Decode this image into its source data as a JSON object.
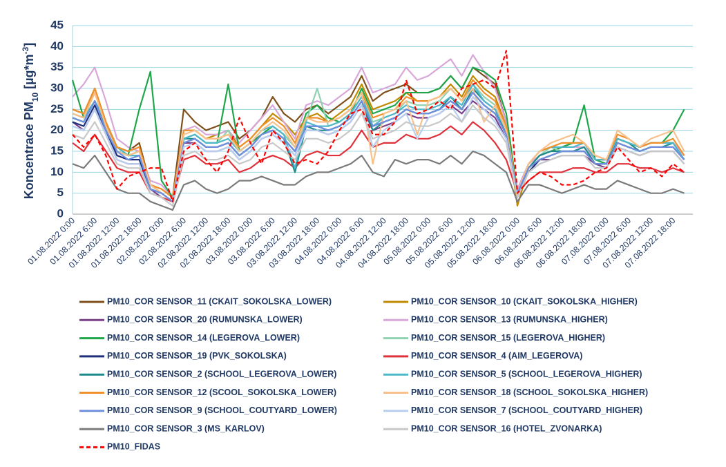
{
  "chart_data": {
    "type": "line",
    "y_label": [
      "Koncentrace PM",
      "10",
      " [µg*m",
      "-3",
      "]"
    ],
    "categories": [
      "01.08.2022 0:00",
      null,
      "01.08.2022 6:00",
      null,
      "01.08.2022 12:00",
      null,
      "01.08.2022 18:00",
      null,
      "02.08.2022 0:00",
      null,
      "02.08.2022 6:00",
      null,
      "02.08.2022 12:00",
      null,
      "02.08.2022 18:00",
      null,
      "03.08.2022 0:00",
      null,
      "03.08.2022 6:00",
      null,
      "03.08.2022 12:00",
      null,
      "03.08.2022 18:00",
      null,
      "04.08.2022 0:00",
      null,
      "04.08.2022 6:00",
      null,
      "04.08.2022 12:00",
      null,
      "04.08.2022 18:00",
      null,
      "05.08.2022 0:00",
      null,
      "05.08.2022 6:00",
      null,
      "05.08.2022 12:00",
      null,
      "05.08.2022 18:00",
      null,
      "06.08.2022 0:00",
      null,
      "06.08.2022 6:00",
      null,
      "06.08.2022 12:00",
      null,
      "06.08.2022 18:00",
      null,
      "07.08.2022 0:00",
      null,
      "07.08.2022 6:00",
      null,
      "07.08.2022 12:00",
      null,
      "07.08.2022 18:00",
      null
    ],
    "ylim": [
      0,
      45
    ],
    "yticks": [
      0,
      5,
      10,
      15,
      20,
      25,
      30,
      35,
      40,
      45
    ],
    "grid": true,
    "series": [
      {
        "name": "PM10_COR SENSOR_11 (CKAIT_SOKOLSKA_LOWER)",
        "color": "#7f4f1a",
        "values": [
          25,
          24,
          30,
          22,
          16,
          15,
          17,
          7,
          6,
          4,
          25,
          22,
          20,
          21,
          22,
          18,
          20,
          23,
          28,
          24,
          22,
          25,
          26,
          24,
          26,
          28,
          33,
          27,
          29,
          30,
          31,
          29,
          29,
          30,
          33,
          30,
          35,
          33,
          31,
          22,
          5,
          11,
          14,
          15,
          16,
          17,
          17,
          13,
          13,
          18,
          17,
          16,
          17,
          17,
          17,
          14
        ]
      },
      {
        "name": "PM10_COR SENSOR_10 (CKAIT_SOKOLSKA_HIGHER)",
        "color": "#c08a00",
        "values": [
          24,
          23,
          29,
          21,
          15,
          14,
          15,
          7,
          5,
          3,
          20,
          20,
          18,
          19,
          20,
          16,
          18,
          21,
          24,
          22,
          19,
          23,
          24,
          22,
          24,
          26,
          31,
          25,
          26,
          27,
          29,
          27,
          27,
          28,
          31,
          28,
          33,
          30,
          28,
          21,
          2,
          11,
          14,
          15,
          16,
          16,
          16,
          13,
          13,
          18,
          17,
          16,
          17,
          17,
          17,
          14
        ]
      },
      {
        "name": "PM10_COR SENSOR_20 (RUMUNSKA_LOWER)",
        "color": "#7b3f8a",
        "values": [
          22,
          20,
          25,
          19,
          13,
          12,
          12,
          6,
          4,
          3,
          17,
          17,
          15,
          15,
          16,
          13,
          15,
          18,
          19,
          17,
          14,
          20,
          20,
          19,
          20,
          22,
          26,
          20,
          21,
          22,
          24,
          23,
          23,
          24,
          26,
          24,
          27,
          25,
          23,
          18,
          4,
          10,
          13,
          13,
          14,
          14,
          14,
          12,
          11,
          16,
          15,
          14,
          15,
          15,
          15,
          12
        ]
      },
      {
        "name": "PM10_COR SENSOR_13 (RUMUNSKA_HIGHER)",
        "color": "#d8a6d8",
        "values": [
          28,
          31,
          35,
          27,
          18,
          16,
          15,
          8,
          7,
          4,
          20,
          21,
          19,
          19,
          20,
          17,
          20,
          23,
          26,
          22,
          18,
          26,
          27,
          26,
          28,
          30,
          35,
          29,
          30,
          31,
          35,
          32,
          33,
          35,
          37,
          33,
          38,
          34,
          30,
          22,
          6,
          12,
          14,
          15,
          16,
          16,
          16,
          13,
          13,
          18,
          17,
          16,
          17,
          17,
          17,
          14
        ]
      },
      {
        "name": "PM10_COR SENSOR_14 (LEGEROVA_LOWER)",
        "color": "#1fa64a",
        "values": [
          32,
          23,
          27,
          20,
          16,
          14,
          25,
          34,
          8,
          4,
          18,
          19,
          17,
          17,
          31,
          15,
          17,
          19,
          21,
          19,
          16,
          24,
          26,
          23,
          22,
          24,
          30,
          24,
          25,
          26,
          29,
          29,
          29,
          30,
          33,
          30,
          35,
          34,
          32,
          24,
          5,
          11,
          14,
          15,
          16,
          17,
          26,
          13,
          12,
          18,
          17,
          16,
          17,
          17,
          20,
          25
        ]
      },
      {
        "name": "PM10_COR SENSOR_15 (LEGEROVA_HIGHER)",
        "color": "#8fd1b0",
        "values": [
          23,
          22,
          27,
          21,
          15,
          14,
          14,
          7,
          5,
          3,
          18,
          19,
          17,
          17,
          20,
          15,
          17,
          20,
          21,
          19,
          16,
          22,
          30,
          21,
          22,
          24,
          28,
          22,
          23,
          24,
          27,
          26,
          26,
          27,
          30,
          27,
          31,
          28,
          26,
          20,
          5,
          11,
          14,
          16,
          15,
          15,
          15,
          12,
          12,
          17,
          16,
          15,
          16,
          16,
          16,
          13
        ]
      },
      {
        "name": "PM10_COR SENSOR_19 (PVK_SOKOLSKA)",
        "color": "#1f2f7a",
        "values": [
          22,
          21,
          26,
          20,
          14,
          13,
          13,
          6,
          5,
          3,
          17,
          18,
          16,
          16,
          17,
          14,
          16,
          19,
          20,
          18,
          15,
          21,
          21,
          20,
          21,
          23,
          27,
          21,
          22,
          23,
          25,
          24,
          24,
          25,
          27,
          25,
          29,
          26,
          24,
          19,
          5,
          10,
          13,
          14,
          15,
          15,
          15,
          12,
          12,
          17,
          16,
          15,
          16,
          16,
          16,
          13
        ]
      },
      {
        "name": "PM10_COR SENSOR_4 (AIM_LEGEROVA)",
        "color": "#e0303a",
        "values": [
          17,
          15,
          19,
          15,
          11,
          10,
          10,
          5,
          4,
          3,
          13,
          14,
          12,
          12,
          13,
          10,
          11,
          13,
          14,
          13,
          11,
          14,
          15,
          14,
          14,
          16,
          20,
          16,
          17,
          17,
          19,
          18,
          18,
          19,
          21,
          19,
          22,
          20,
          17,
          13,
          5,
          8,
          10,
          10,
          10,
          11,
          11,
          10,
          10,
          12,
          12,
          11,
          11,
          10,
          11,
          10
        ]
      },
      {
        "name": "PM10_COR SENSOR_2 (SCHOOL_LEGEROVA_LOWER)",
        "color": "#1f8a8a",
        "values": [
          23,
          22,
          27,
          21,
          15,
          14,
          14,
          6,
          5,
          3,
          18,
          18,
          16,
          16,
          17,
          14,
          16,
          19,
          20,
          18,
          10,
          21,
          20,
          20,
          21,
          23,
          27,
          20,
          22,
          23,
          25,
          24,
          24,
          25,
          28,
          25,
          30,
          27,
          25,
          19,
          5,
          11,
          14,
          15,
          15,
          15,
          16,
          12,
          12,
          18,
          17,
          15,
          16,
          16,
          17,
          13
        ]
      },
      {
        "name": "PM10_COR SENSOR_5 (SCHOOL_LEGEROVA_HIGHER)",
        "color": "#4fb8c8",
        "values": [
          24,
          23,
          27,
          22,
          16,
          14,
          14,
          7,
          5,
          3,
          18,
          19,
          17,
          17,
          18,
          15,
          17,
          20,
          21,
          19,
          11,
          22,
          21,
          21,
          22,
          24,
          28,
          21,
          23,
          24,
          26,
          25,
          25,
          26,
          28,
          26,
          31,
          27,
          25,
          20,
          5,
          12,
          15,
          16,
          16,
          16,
          17,
          13,
          13,
          18,
          17,
          16,
          17,
          17,
          17,
          13
        ]
      },
      {
        "name": "PM10_COR SENSOR_12 (SCOOL_SOKOLSKA_LOWER)",
        "color": "#f0902a",
        "values": [
          25,
          24,
          30,
          22,
          16,
          15,
          16,
          7,
          6,
          4,
          20,
          20,
          18,
          18,
          19,
          16,
          18,
          21,
          23,
          21,
          17,
          23,
          23,
          22,
          23,
          25,
          29,
          23,
          24,
          25,
          28,
          27,
          27,
          28,
          30,
          27,
          32,
          29,
          27,
          21,
          5,
          12,
          15,
          16,
          17,
          17,
          17,
          14,
          13,
          19,
          18,
          16,
          17,
          17,
          18,
          14
        ]
      },
      {
        "name": "PM10_COR SENSOR_18 (SCHOOL_SOKOLSKA_HIGHER)",
        "color": "#f8c08a",
        "values": [
          24,
          23,
          29,
          21,
          15,
          14,
          15,
          7,
          5,
          3,
          19,
          20,
          18,
          18,
          19,
          15,
          17,
          20,
          22,
          20,
          16,
          23,
          22,
          22,
          23,
          25,
          29,
          12,
          24,
          25,
          27,
          19,
          27,
          28,
          30,
          27,
          30,
          22,
          26,
          20,
          5,
          12,
          15,
          17,
          18,
          19,
          17,
          14,
          13,
          20,
          18,
          16,
          18,
          19,
          20,
          15
        ]
      },
      {
        "name": "PM10_COR SENSOR_9 (SCHOOL_COUTYARD_LOWER)",
        "color": "#6f8fdf",
        "values": [
          23,
          22,
          27,
          20,
          15,
          13,
          14,
          6,
          5,
          3,
          17,
          18,
          16,
          16,
          17,
          14,
          16,
          19,
          20,
          18,
          15,
          21,
          21,
          20,
          21,
          23,
          27,
          21,
          22,
          23,
          25,
          24,
          24,
          25,
          27,
          25,
          29,
          26,
          24,
          19,
          5,
          11,
          13,
          14,
          15,
          15,
          15,
          12,
          12,
          17,
          16,
          15,
          16,
          16,
          16,
          13
        ]
      },
      {
        "name": "PM10_COR SENSOR_7 (SCHOOL_COUTYARD_HIGHER)",
        "color": "#b8cff0",
        "values": [
          21,
          20,
          25,
          19,
          13,
          12,
          12,
          5,
          4,
          2,
          16,
          17,
          15,
          15,
          16,
          13,
          15,
          18,
          19,
          17,
          14,
          20,
          20,
          19,
          20,
          22,
          26,
          16,
          20,
          22,
          24,
          18,
          23,
          24,
          26,
          22,
          28,
          25,
          22,
          18,
          4,
          10,
          12,
          13,
          14,
          14,
          14,
          11,
          11,
          16,
          15,
          14,
          15,
          15,
          15,
          12
        ]
      },
      {
        "name": "PM10_COR SENSOR_3 (MS_KARLOV)",
        "color": "#7a7a7a",
        "values": [
          12,
          11,
          14,
          10,
          6,
          5,
          5,
          3,
          2,
          1,
          7,
          8,
          6,
          5,
          6,
          8,
          8,
          9,
          8,
          7,
          7,
          9,
          10,
          10,
          11,
          12,
          14,
          10,
          9,
          13,
          12,
          13,
          13,
          12,
          14,
          12,
          15,
          14,
          12,
          10,
          3,
          7,
          7,
          6,
          5,
          6,
          7,
          6,
          6,
          8,
          7,
          6,
          5,
          5,
          6,
          5
        ]
      },
      {
        "name": "PM10_COR SENSOR_16 (HOTEL_ZVONARKA)",
        "color": "#c8c8c8",
        "values": [
          19,
          18,
          22,
          17,
          12,
          11,
          11,
          5,
          4,
          2,
          14,
          15,
          13,
          13,
          14,
          12,
          13,
          16,
          17,
          15,
          13,
          18,
          18,
          17,
          18,
          20,
          24,
          18,
          19,
          20,
          22,
          21,
          21,
          22,
          24,
          22,
          26,
          23,
          21,
          17,
          4,
          10,
          12,
          13,
          14,
          14,
          14,
          11,
          11,
          16,
          15,
          14,
          15,
          15,
          15,
          12
        ]
      },
      {
        "name": "PM10_FIDAS",
        "color": "#ff0000",
        "dash": true,
        "values": [
          19,
          16,
          19,
          14,
          6,
          9,
          10,
          11,
          11,
          3,
          15,
          17,
          13,
          10,
          15,
          23,
          17,
          12,
          20,
          17,
          12,
          13,
          12,
          15,
          20,
          24,
          25,
          19,
          19,
          22,
          32,
          24,
          25,
          27,
          25,
          30,
          31,
          32,
          30,
          39,
          5,
          8,
          10,
          9,
          7,
          7,
          8,
          10,
          11,
          16,
          13,
          10,
          11,
          9,
          12,
          10
        ]
      }
    ]
  }
}
